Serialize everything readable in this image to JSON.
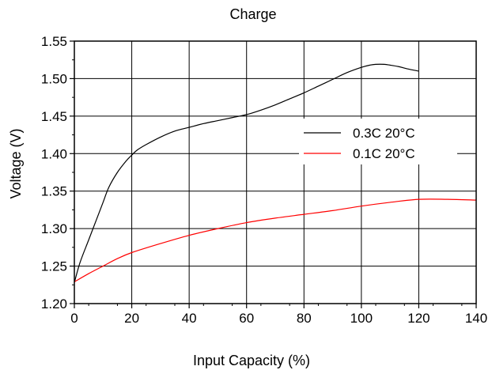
{
  "chart_data": {
    "type": "line",
    "title": "Charge",
    "xlabel": "Input Capacity (%)",
    "ylabel": "Voltage (V)",
    "xlim": [
      0,
      140
    ],
    "ylim": [
      1.2,
      1.55
    ],
    "xticks": [
      "0",
      "20",
      "40",
      "60",
      "80",
      "100",
      "120",
      "140"
    ],
    "yticks": [
      "1.20",
      "1.25",
      "1.30",
      "1.35",
      "1.40",
      "1.45",
      "1.50",
      "1.55"
    ],
    "grid": true,
    "legend_position": "right",
    "series": [
      {
        "name": "0.3C  20°C",
        "color": "#000000",
        "x": [
          0,
          2,
          5,
          8,
          10,
          12,
          15,
          18,
          20,
          22,
          25,
          30,
          35,
          40,
          45,
          50,
          55,
          60,
          65,
          70,
          75,
          80,
          85,
          90,
          95,
          100,
          103,
          105,
          108,
          110,
          113,
          116,
          120
        ],
        "y": [
          1.228,
          1.255,
          1.285,
          1.315,
          1.335,
          1.355,
          1.375,
          1.39,
          1.398,
          1.405,
          1.412,
          1.422,
          1.43,
          1.435,
          1.44,
          1.444,
          1.448,
          1.452,
          1.458,
          1.465,
          1.473,
          1.481,
          1.49,
          1.499,
          1.508,
          1.515,
          1.518,
          1.519,
          1.519,
          1.518,
          1.516,
          1.513,
          1.51
        ]
      },
      {
        "name": "0.1C  20°C",
        "color": "#ff0000",
        "x": [
          0,
          5,
          10,
          15,
          20,
          30,
          40,
          50,
          60,
          70,
          80,
          90,
          100,
          110,
          120,
          130,
          140
        ],
        "y": [
          1.229,
          1.24,
          1.25,
          1.26,
          1.268,
          1.28,
          1.291,
          1.3,
          1.308,
          1.314,
          1.319,
          1.324,
          1.33,
          1.335,
          1.339,
          1.339,
          1.338
        ]
      }
    ]
  }
}
